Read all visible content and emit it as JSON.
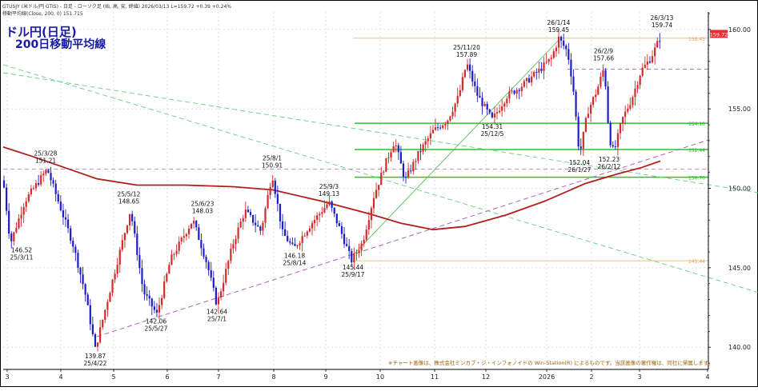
{
  "header": {
    "symbol_line": "GTUSJY (米ドル/円 GTIS) - 日足 - ローソク足 (始, 高, 安, 終値)   2026/03/13  L=159.72  +0.39  +0.24%",
    "ma_line": "移動平均線(Close, 200, 0) 151.715"
  },
  "title": {
    "line1": "ドル円(日足)",
    "line2": "200日移動平均線"
  },
  "copyright": "※チャート画像は、株式会社ミンカブ・ジ・インフォノイドの Win-Station(R) によるものです。当該画像の著作権は、同社に帰属します。",
  "colors": {
    "up": "#d42a2a",
    "down": "#1d1dc8",
    "ma200": "#b21e1e",
    "support_green": "#2bc42b",
    "trend_purple": "#b060c0",
    "trend_green": "#66cc88",
    "hline_orange": "#f0c080",
    "price_tag": "#e03030"
  },
  "chart_data": {
    "type": "candlestick",
    "title": "ドル円(日足)",
    "subtitle": "200日移動平均線",
    "ylim": [
      138.6,
      161.1
    ],
    "y_ticks": [
      "140.00",
      "145.00",
      "150.00",
      "155.00",
      "160.00"
    ],
    "x_labels": [
      "3",
      "4",
      "5",
      "6",
      "7",
      "8",
      "9",
      "10",
      "11",
      "12",
      "2026",
      "2",
      "3",
      "4"
    ],
    "last_price": "159.72",
    "horizontal_levels": [
      {
        "label": "159.45",
        "value": 159.45,
        "color": "#f0c080"
      },
      {
        "label": "154.10",
        "value": 154.1,
        "color": "#2bc42b"
      },
      {
        "label": "152.44",
        "value": 152.44,
        "color": "#2bc42b"
      },
      {
        "label": "150.70",
        "value": 150.7,
        "color": "#2bc42b"
      },
      {
        "label": "145.44",
        "value": 145.44,
        "color": "#f0c080"
      }
    ],
    "annotations": [
      {
        "date": "25/3/11",
        "price": "146.52",
        "pos": "below"
      },
      {
        "date": "25/3/28",
        "price": "151.21",
        "pos": "above"
      },
      {
        "date": "25/4/22",
        "price": "139.87",
        "pos": "below"
      },
      {
        "date": "25/5/12",
        "price": "148.65",
        "pos": "above"
      },
      {
        "date": "25/5/27",
        "price": "142.06",
        "pos": "below"
      },
      {
        "date": "25/6/23",
        "price": "148.03",
        "pos": "above"
      },
      {
        "date": "25/7/1",
        "price": "142.64",
        "pos": "below"
      },
      {
        "date": "25/8/1",
        "price": "150.91",
        "pos": "above"
      },
      {
        "date": "25/8/14",
        "price": "146.18",
        "pos": "below"
      },
      {
        "date": "25/9/3",
        "price": "149.13",
        "pos": "above"
      },
      {
        "date": "25/9/17",
        "price": "145.44",
        "pos": "below"
      },
      {
        "date": "25/11/20",
        "price": "157.89",
        "pos": "above"
      },
      {
        "date": "25/12/5",
        "price": "154.31",
        "pos": "below"
      },
      {
        "date": "26/1/14",
        "price": "159.45",
        "pos": "above"
      },
      {
        "date": "26/1/27",
        "price": "152.04",
        "pos": "below"
      },
      {
        "date": "26/2/9",
        "price": "157.66",
        "pos": "above"
      },
      {
        "date": "26/2/12",
        "price": "152.23",
        "pos": "below"
      },
      {
        "date": "26/3/13",
        "price": "159.74",
        "pos": "above"
      }
    ],
    "ma200_value": "151.715"
  }
}
